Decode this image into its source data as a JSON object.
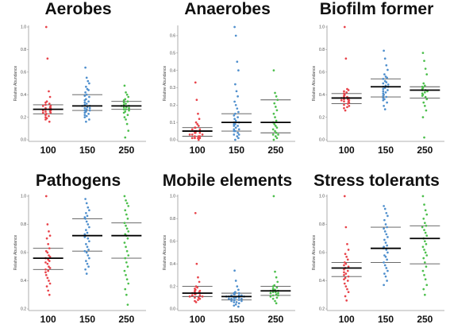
{
  "colors": {
    "100": "#e8434a",
    "150": "#4f8fcd",
    "250": "#4cbf4c",
    "axis": "#999999",
    "median": "#000000",
    "quartile": "#555555"
  },
  "chart_data": [
    {
      "type": "scatter",
      "title": "Aerobes",
      "ylabel": "Relative Abundance",
      "categories": [
        "100",
        "150",
        "250"
      ],
      "ylim": [
        0,
        1.0
      ],
      "yticks": [
        "0.0",
        "0.2",
        "0.4",
        "0.6",
        "0.8",
        "1.0"
      ],
      "tick_values": [
        0,
        0.2,
        0.4,
        0.6,
        0.8,
        1.0
      ],
      "series": [
        {
          "category": "100",
          "median": 0.27,
          "q1": 0.23,
          "q3": 0.31,
          "values": [
            1.0,
            0.72,
            0.43,
            0.38,
            0.34,
            0.33,
            0.32,
            0.31,
            0.3,
            0.3,
            0.29,
            0.28,
            0.28,
            0.27,
            0.27,
            0.26,
            0.26,
            0.25,
            0.25,
            0.24,
            0.24,
            0.23,
            0.22,
            0.21,
            0.2,
            0.19,
            0.18,
            0.16
          ]
        },
        {
          "category": "150",
          "median": 0.3,
          "q1": 0.26,
          "q3": 0.4,
          "values": [
            0.64,
            0.55,
            0.52,
            0.5,
            0.47,
            0.45,
            0.44,
            0.42,
            0.4,
            0.39,
            0.38,
            0.36,
            0.35,
            0.34,
            0.33,
            0.32,
            0.31,
            0.3,
            0.3,
            0.29,
            0.28,
            0.28,
            0.27,
            0.26,
            0.26,
            0.25,
            0.24,
            0.23,
            0.22,
            0.21,
            0.2,
            0.18,
            0.16
          ]
        },
        {
          "category": "250",
          "median": 0.3,
          "q1": 0.27,
          "q3": 0.34,
          "values": [
            0.48,
            0.42,
            0.4,
            0.38,
            0.36,
            0.35,
            0.34,
            0.33,
            0.32,
            0.31,
            0.3,
            0.3,
            0.29,
            0.29,
            0.28,
            0.27,
            0.27,
            0.26,
            0.25,
            0.24,
            0.22,
            0.2,
            0.18,
            0.14,
            0.08,
            0.02
          ]
        }
      ]
    },
    {
      "type": "scatter",
      "title": "Anaerobes",
      "ylabel": "Relative Abundance",
      "categories": [
        "100",
        "150",
        "250"
      ],
      "ylim": [
        0,
        0.65
      ],
      "yticks": [
        "0.0",
        "0.1",
        "0.2",
        "0.3",
        "0.4",
        "0.5",
        "0.6"
      ],
      "tick_values": [
        0,
        0.1,
        0.2,
        0.3,
        0.4,
        0.5,
        0.6
      ],
      "series": [
        {
          "category": "100",
          "median": 0.05,
          "q1": 0.02,
          "q3": 0.07,
          "values": [
            0.33,
            0.23,
            0.15,
            0.12,
            0.1,
            0.09,
            0.08,
            0.07,
            0.07,
            0.06,
            0.06,
            0.05,
            0.05,
            0.05,
            0.04,
            0.04,
            0.04,
            0.03,
            0.03,
            0.03,
            0.02,
            0.02,
            0.02,
            0.01,
            0.01,
            0.01,
            0.01,
            0.0
          ]
        },
        {
          "category": "150",
          "median": 0.1,
          "q1": 0.05,
          "q3": 0.15,
          "values": [
            0.65,
            0.6,
            0.45,
            0.4,
            0.32,
            0.28,
            0.25,
            0.22,
            0.2,
            0.18,
            0.16,
            0.15,
            0.14,
            0.13,
            0.12,
            0.11,
            0.1,
            0.1,
            0.09,
            0.09,
            0.08,
            0.08,
            0.07,
            0.06,
            0.06,
            0.05,
            0.05,
            0.04,
            0.03,
            0.03,
            0.02,
            0.01,
            0.0
          ]
        },
        {
          "category": "250",
          "median": 0.1,
          "q1": 0.04,
          "q3": 0.23,
          "values": [
            0.4,
            0.27,
            0.25,
            0.23,
            0.21,
            0.19,
            0.17,
            0.15,
            0.13,
            0.11,
            0.1,
            0.09,
            0.08,
            0.07,
            0.06,
            0.05,
            0.04,
            0.03,
            0.03,
            0.02,
            0.01,
            0.0
          ]
        }
      ]
    },
    {
      "type": "scatter",
      "title": "Biofilm former",
      "ylabel": "Relative Abundance",
      "categories": [
        "100",
        "150",
        "250"
      ],
      "ylim": [
        0,
        1.0
      ],
      "yticks": [
        "0.0",
        "0.2",
        "0.4",
        "0.6",
        "0.8",
        "1.0"
      ],
      "tick_values": [
        0,
        0.2,
        0.4,
        0.6,
        0.8,
        1.0
      ],
      "series": [
        {
          "category": "100",
          "median": 0.37,
          "q1": 0.32,
          "q3": 0.41,
          "values": [
            1.0,
            0.72,
            0.45,
            0.44,
            0.43,
            0.42,
            0.41,
            0.4,
            0.39,
            0.38,
            0.38,
            0.37,
            0.37,
            0.36,
            0.36,
            0.35,
            0.35,
            0.34,
            0.34,
            0.33,
            0.32,
            0.31,
            0.3,
            0.29,
            0.28,
            0.26
          ]
        },
        {
          "category": "150",
          "median": 0.47,
          "q1": 0.38,
          "q3": 0.54,
          "values": [
            0.79,
            0.72,
            0.66,
            0.62,
            0.58,
            0.56,
            0.55,
            0.54,
            0.52,
            0.51,
            0.5,
            0.49,
            0.48,
            0.47,
            0.47,
            0.46,
            0.45,
            0.44,
            0.43,
            0.42,
            0.41,
            0.4,
            0.39,
            0.38,
            0.37,
            0.36,
            0.35,
            0.33,
            0.3,
            0.27
          ]
        },
        {
          "category": "250",
          "median": 0.44,
          "q1": 0.37,
          "q3": 0.47,
          "values": [
            0.77,
            0.7,
            0.63,
            0.58,
            0.5,
            0.48,
            0.47,
            0.46,
            0.45,
            0.44,
            0.44,
            0.43,
            0.42,
            0.41,
            0.4,
            0.39,
            0.38,
            0.36,
            0.33,
            0.3,
            0.26,
            0.2,
            0.02
          ]
        }
      ]
    },
    {
      "type": "scatter",
      "title": "Pathogens",
      "ylabel": "Relative Abundance",
      "categories": [
        "100",
        "150",
        "250"
      ],
      "ylim": [
        0.2,
        1.0
      ],
      "yticks": [
        "0.2",
        "0.4",
        "0.6",
        "0.8",
        "1.0"
      ],
      "tick_values": [
        0.2,
        0.4,
        0.6,
        0.8,
        1.0
      ],
      "series": [
        {
          "category": "100",
          "median": 0.56,
          "q1": 0.48,
          "q3": 0.63,
          "values": [
            1.0,
            0.8,
            0.75,
            0.72,
            0.7,
            0.66,
            0.63,
            0.61,
            0.6,
            0.58,
            0.57,
            0.56,
            0.55,
            0.54,
            0.53,
            0.52,
            0.5,
            0.49,
            0.48,
            0.47,
            0.46,
            0.44,
            0.42,
            0.4,
            0.38,
            0.36,
            0.33,
            0.3
          ]
        },
        {
          "category": "150",
          "median": 0.72,
          "q1": 0.61,
          "q3": 0.84,
          "values": [
            0.98,
            0.95,
            0.92,
            0.9,
            0.88,
            0.86,
            0.85,
            0.84,
            0.82,
            0.8,
            0.78,
            0.76,
            0.74,
            0.73,
            0.72,
            0.71,
            0.7,
            0.68,
            0.66,
            0.64,
            0.62,
            0.61,
            0.6,
            0.58,
            0.56,
            0.54,
            0.52,
            0.5,
            0.48,
            0.45
          ]
        },
        {
          "category": "250",
          "median": 0.72,
          "q1": 0.56,
          "q3": 0.81,
          "values": [
            1.0,
            0.97,
            0.95,
            0.93,
            0.9,
            0.87,
            0.84,
            0.81,
            0.79,
            0.77,
            0.75,
            0.73,
            0.72,
            0.7,
            0.67,
            0.64,
            0.61,
            0.58,
            0.56,
            0.53,
            0.5,
            0.47,
            0.44,
            0.41,
            0.38,
            0.34,
            0.3,
            0.23
          ]
        }
      ]
    },
    {
      "type": "scatter",
      "title": "Mobile elements",
      "ylabel": "Relative Abundance",
      "categories": [
        "100",
        "150",
        "250"
      ],
      "ylim": [
        0,
        1.0
      ],
      "yticks": [
        "0.0",
        "0.2",
        "0.4",
        "0.6",
        "0.8",
        "1.0"
      ],
      "tick_values": [
        0,
        0.2,
        0.4,
        0.6,
        0.8,
        1.0
      ],
      "series": [
        {
          "category": "100",
          "median": 0.14,
          "q1": 0.11,
          "q3": 0.2,
          "values": [
            0.85,
            0.4,
            0.28,
            0.24,
            0.2,
            0.19,
            0.18,
            0.17,
            0.16,
            0.16,
            0.15,
            0.15,
            0.14,
            0.14,
            0.13,
            0.13,
            0.12,
            0.12,
            0.11,
            0.11,
            0.1,
            0.1,
            0.09,
            0.08,
            0.07,
            0.06
          ]
        },
        {
          "category": "150",
          "median": 0.11,
          "q1": 0.08,
          "q3": 0.14,
          "values": [
            0.34,
            0.25,
            0.2,
            0.17,
            0.15,
            0.14,
            0.14,
            0.13,
            0.13,
            0.12,
            0.12,
            0.12,
            0.11,
            0.11,
            0.11,
            0.1,
            0.1,
            0.1,
            0.09,
            0.09,
            0.09,
            0.08,
            0.08,
            0.08,
            0.07,
            0.07,
            0.06,
            0.06,
            0.05,
            0.04,
            0.03,
            0.02
          ]
        },
        {
          "category": "250",
          "median": 0.16,
          "q1": 0.12,
          "q3": 0.2,
          "values": [
            1.0,
            0.33,
            0.28,
            0.24,
            0.21,
            0.2,
            0.19,
            0.18,
            0.17,
            0.17,
            0.16,
            0.16,
            0.15,
            0.15,
            0.14,
            0.14,
            0.13,
            0.12,
            0.12,
            0.11,
            0.1,
            0.09,
            0.07,
            0.05
          ]
        }
      ]
    },
    {
      "type": "scatter",
      "title": "Stress tolerants",
      "ylabel": "Relative Abundance",
      "categories": [
        "100",
        "150",
        "250"
      ],
      "ylim": [
        0.2,
        1.0
      ],
      "yticks": [
        "0.2",
        "0.4",
        "0.6",
        "0.8",
        "1.0"
      ],
      "tick_values": [
        0.2,
        0.4,
        0.6,
        0.8,
        1.0
      ],
      "series": [
        {
          "category": "100",
          "median": 0.49,
          "q1": 0.43,
          "q3": 0.53,
          "values": [
            1.0,
            0.78,
            0.66,
            0.62,
            0.59,
            0.57,
            0.55,
            0.53,
            0.52,
            0.51,
            0.5,
            0.49,
            0.48,
            0.47,
            0.46,
            0.45,
            0.44,
            0.43,
            0.42,
            0.41,
            0.4,
            0.38,
            0.36,
            0.34,
            0.32,
            0.29,
            0.26
          ]
        },
        {
          "category": "150",
          "median": 0.63,
          "q1": 0.53,
          "q3": 0.78,
          "values": [
            0.93,
            0.91,
            0.88,
            0.86,
            0.83,
            0.8,
            0.78,
            0.77,
            0.75,
            0.73,
            0.71,
            0.69,
            0.67,
            0.65,
            0.64,
            0.63,
            0.62,
            0.6,
            0.58,
            0.57,
            0.55,
            0.53,
            0.51,
            0.49,
            0.47,
            0.45,
            0.43,
            0.4,
            0.37
          ]
        },
        {
          "category": "250",
          "median": 0.7,
          "q1": 0.52,
          "q3": 0.79,
          "values": [
            1.0,
            0.94,
            0.9,
            0.87,
            0.84,
            0.81,
            0.79,
            0.78,
            0.76,
            0.74,
            0.72,
            0.7,
            0.68,
            0.66,
            0.64,
            0.62,
            0.6,
            0.58,
            0.56,
            0.53,
            0.5,
            0.47,
            0.44,
            0.41,
            0.37,
            0.34,
            0.3
          ]
        }
      ]
    }
  ]
}
